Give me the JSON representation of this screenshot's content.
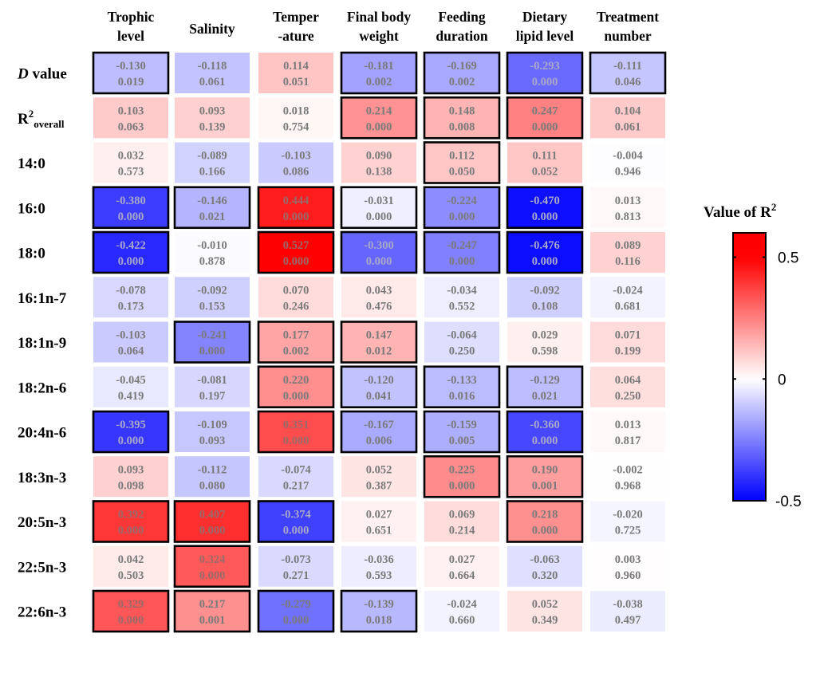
{
  "chart_data": {
    "type": "heatmap",
    "title": "",
    "columns": [
      [
        "Trophic",
        "level"
      ],
      [
        "Salinity"
      ],
      [
        "Temper",
        "-ature"
      ],
      [
        "Final body",
        "weight"
      ],
      [
        "Feeding",
        "duration"
      ],
      [
        "Dietary",
        "lipid level"
      ],
      [
        "Treatment",
        "number"
      ]
    ],
    "rows": [
      {
        "label": "D value",
        "label_italic_prefix": "D",
        "label_rest": " value",
        "r2": [
          -0.13,
          -0.118,
          0.114,
          -0.181,
          -0.169,
          -0.293,
          -0.111
        ],
        "p": [
          "0.019",
          "0.061",
          "0.051",
          "0.002",
          "0.002",
          "0.000",
          "0.046"
        ],
        "significant": [
          true,
          false,
          false,
          true,
          true,
          true,
          true
        ]
      },
      {
        "label": "R2overall",
        "label_main": "R",
        "label_sup": "2",
        "label_sub": "overall",
        "r2": [
          0.103,
          0.093,
          0.018,
          0.214,
          0.148,
          0.247,
          0.104
        ],
        "p": [
          "0.063",
          "0.139",
          "0.754",
          "0.000",
          "0.008",
          "0.000",
          "0.061"
        ],
        "significant": [
          false,
          false,
          false,
          true,
          true,
          true,
          false
        ]
      },
      {
        "label": "14:0",
        "r2": [
          0.032,
          -0.089,
          -0.103,
          0.09,
          0.112,
          0.111,
          -0.004
        ],
        "p": [
          "0.573",
          "0.166",
          "0.086",
          "0.138",
          "0.050",
          "0.052",
          "0.946"
        ],
        "significant": [
          false,
          false,
          false,
          false,
          true,
          false,
          false
        ]
      },
      {
        "label": "16:0",
        "r2": [
          -0.38,
          -0.146,
          0.444,
          -0.031,
          -0.224,
          -0.47,
          0.013
        ],
        "p": [
          "0.000",
          "0.021",
          "0.000",
          "0.000",
          "0.000",
          "0.000",
          "0.813"
        ],
        "significant": [
          true,
          true,
          true,
          true,
          true,
          true,
          false
        ]
      },
      {
        "label": "18:0",
        "r2": [
          -0.422,
          -0.01,
          0.527,
          -0.3,
          -0.247,
          -0.476,
          0.089
        ],
        "p": [
          "0.000",
          "0.878",
          "0.000",
          "0.000",
          "0.000",
          "0.000",
          "0.116"
        ],
        "significant": [
          true,
          false,
          true,
          true,
          true,
          true,
          false
        ]
      },
      {
        "label": "16:1n-7",
        "r2": [
          -0.078,
          -0.092,
          0.07,
          0.043,
          -0.034,
          -0.092,
          -0.024
        ],
        "p": [
          "0.173",
          "0.153",
          "0.246",
          "0.476",
          "0.552",
          "0.108",
          "0.681"
        ],
        "significant": [
          false,
          false,
          false,
          false,
          false,
          false,
          false
        ]
      },
      {
        "label": "18:1n-9",
        "r2": [
          -0.103,
          -0.241,
          0.177,
          0.147,
          -0.064,
          0.029,
          0.071
        ],
        "p": [
          "0.064",
          "0.000",
          "0.002",
          "0.012",
          "0.250",
          "0.598",
          "0.199"
        ],
        "significant": [
          false,
          true,
          true,
          true,
          false,
          false,
          false
        ]
      },
      {
        "label": "18:2n-6",
        "r2": [
          -0.045,
          -0.081,
          0.22,
          -0.12,
          -0.133,
          -0.129,
          0.064
        ],
        "p": [
          "0.419",
          "0.197",
          "0.000",
          "0.041",
          "0.016",
          "0.021",
          "0.250"
        ],
        "significant": [
          false,
          false,
          true,
          true,
          true,
          true,
          false
        ]
      },
      {
        "label": "20:4n-6",
        "r2": [
          -0.395,
          -0.109,
          0.351,
          -0.167,
          -0.159,
          -0.36,
          0.013
        ],
        "p": [
          "0.000",
          "0.093",
          "0.000",
          "0.006",
          "0.005",
          "0.000",
          "0.817"
        ],
        "significant": [
          true,
          false,
          true,
          true,
          true,
          true,
          false
        ]
      },
      {
        "label": "18:3n-3",
        "r2": [
          0.093,
          -0.112,
          -0.074,
          0.052,
          0.225,
          0.19,
          -0.002
        ],
        "p": [
          "0.098",
          "0.080",
          "0.217",
          "0.387",
          "0.000",
          "0.001",
          "0.968"
        ],
        "significant": [
          false,
          false,
          false,
          false,
          true,
          true,
          false
        ]
      },
      {
        "label": "20:5n-3",
        "r2": [
          0.392,
          0.407,
          -0.374,
          0.027,
          0.069,
          0.218,
          -0.02
        ],
        "p": [
          "0.000",
          "0.000",
          "0.000",
          "0.651",
          "0.214",
          "0.000",
          "0.725"
        ],
        "significant": [
          true,
          true,
          true,
          false,
          false,
          true,
          false
        ]
      },
      {
        "label": "22:5n-3",
        "r2": [
          0.042,
          0.324,
          -0.073,
          -0.036,
          0.027,
          -0.063,
          0.003
        ],
        "p": [
          "0.503",
          "0.000",
          "0.271",
          "0.593",
          "0.664",
          "0.320",
          "0.960"
        ],
        "significant": [
          false,
          true,
          false,
          false,
          false,
          false,
          false
        ]
      },
      {
        "label": "22:6n-3",
        "r2": [
          0.329,
          0.217,
          -0.279,
          -0.139,
          -0.024,
          0.052,
          -0.038
        ],
        "p": [
          "0.000",
          "0.001",
          "0.000",
          "0.018",
          "0.660",
          "0.349",
          "0.497"
        ],
        "significant": [
          true,
          true,
          true,
          true,
          false,
          false,
          false
        ]
      }
    ],
    "colorscale": {
      "title_main": "Value of R",
      "title_sup": "2",
      "min": -0.5,
      "max": 0.5,
      "range_shown": [
        -0.5,
        0.6
      ],
      "ticks": [
        0.5,
        0,
        -0.5
      ],
      "tick_labels": [
        "0.5",
        "0",
        "-0.5"
      ],
      "low_color": "#0000ff",
      "mid_color": "#ffffff",
      "high_color": "#ff0000",
      "placement": "right"
    },
    "xlabel": "",
    "ylabel": "",
    "grid": false
  }
}
